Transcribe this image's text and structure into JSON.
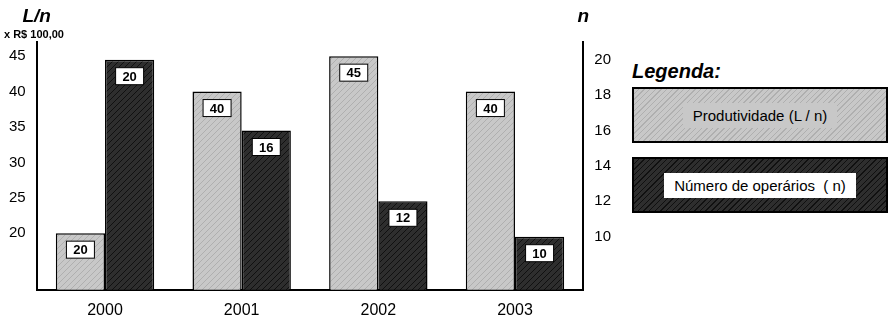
{
  "chart_data": {
    "type": "bar",
    "ylabel": "L/n",
    "y2label": "n",
    "annotations": [
      {
        "text": "x R$ 100,00"
      }
    ],
    "legend_title": "Legenda:",
    "categories": [
      "2000",
      "2001",
      "2002",
      "2003"
    ],
    "series": [
      {
        "name": "Produtividade (L / n)",
        "color": "#c8c8c8",
        "values": [
          20,
          40,
          45,
          40
        ],
        "axis": "y"
      },
      {
        "name": "Número de operários  ( n)",
        "color": "#2e2e2e",
        "values": [
          20,
          16,
          12,
          10
        ],
        "axis": "y2"
      }
    ],
    "ylim": [
      12,
      47
    ],
    "yticks": [
      20,
      25,
      30,
      35,
      40,
      45
    ],
    "y2lim": [
      7,
      21
    ],
    "y2ticks": [
      10,
      12,
      14,
      16,
      18,
      20
    ],
    "grid": false,
    "legend": "right",
    "data_labels": true
  }
}
